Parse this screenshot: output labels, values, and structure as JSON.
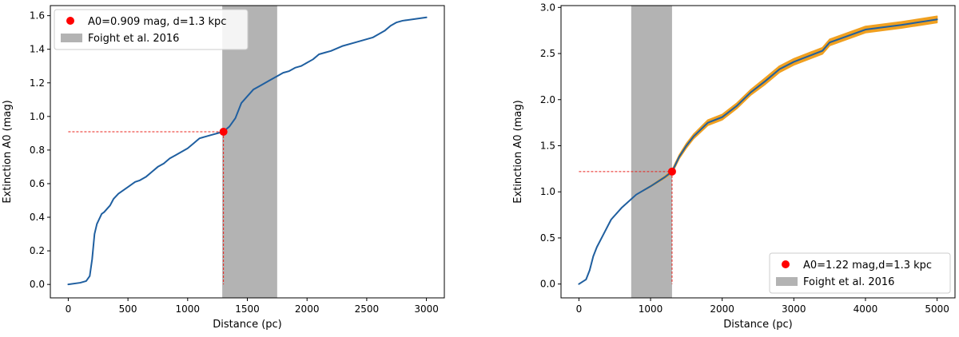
{
  "chart_data": [
    {
      "type": "line",
      "xlabel": "Distance (pc)",
      "ylabel": "Extinction A0 (mag)",
      "xlim": [
        -150,
        3150
      ],
      "ylim": [
        -0.08,
        1.66
      ],
      "xticks": [
        0,
        500,
        1000,
        1500,
        2000,
        2500,
        3000
      ],
      "xtick_labels": [
        "0",
        "500",
        "1000",
        "1500",
        "2000",
        "2500",
        "3000"
      ],
      "yticks": [
        0.0,
        0.2,
        0.4,
        0.6,
        0.8,
        1.0,
        1.2,
        1.4,
        1.6
      ],
      "ytick_labels": [
        "0.0",
        "0.2",
        "0.4",
        "0.6",
        "0.8",
        "1.0",
        "1.2",
        "1.4",
        "1.6"
      ],
      "legend_position": "top-left",
      "series": [
        {
          "color": "#1f5fa0",
          "x": [
            0,
            100,
            150,
            180,
            200,
            220,
            240,
            280,
            300,
            350,
            380,
            420,
            500,
            560,
            600,
            650,
            700,
            750,
            800,
            850,
            900,
            950,
            1000,
            1050,
            1100,
            1150,
            1200,
            1250,
            1300,
            1350,
            1400,
            1450,
            1500,
            1550,
            1600,
            1650,
            1700,
            1750,
            1800,
            1850,
            1900,
            1950,
            2000,
            2050,
            2100,
            2150,
            2200,
            2300,
            2400,
            2500,
            2550,
            2600,
            2650,
            2700,
            2750,
            2800,
            2900,
            3000
          ],
          "y": [
            0.0,
            0.01,
            0.02,
            0.05,
            0.15,
            0.3,
            0.36,
            0.42,
            0.43,
            0.47,
            0.51,
            0.54,
            0.58,
            0.61,
            0.62,
            0.64,
            0.67,
            0.7,
            0.72,
            0.75,
            0.77,
            0.79,
            0.81,
            0.84,
            0.87,
            0.88,
            0.89,
            0.9,
            0.91,
            0.94,
            0.99,
            1.08,
            1.12,
            1.16,
            1.18,
            1.2,
            1.22,
            1.24,
            1.26,
            1.27,
            1.29,
            1.3,
            1.32,
            1.34,
            1.37,
            1.38,
            1.39,
            1.42,
            1.44,
            1.46,
            1.47,
            1.49,
            1.51,
            1.54,
            1.56,
            1.57,
            1.58,
            1.59
          ]
        }
      ],
      "shaded_band": {
        "label": "Foight et al. 2016",
        "color": "#b3b3b3",
        "x_range": [
          1290,
          1750
        ]
      },
      "marker": {
        "label": "A0=0.909 mag, d=1.3 kpc",
        "color": "#ff0000",
        "x": 1300,
        "y": 0.909
      },
      "guide_color": "#e8231c"
    },
    {
      "type": "line",
      "xlabel": "Distance (pc)",
      "ylabel": "Extinction A0 (mag)",
      "xlim": [
        -250,
        5250
      ],
      "ylim": [
        -0.15,
        3.02
      ],
      "xticks": [
        0,
        1000,
        2000,
        3000,
        4000,
        5000
      ],
      "xtick_labels": [
        "0",
        "1000",
        "2000",
        "3000",
        "4000",
        "5000"
      ],
      "yticks": [
        0.0,
        0.5,
        1.0,
        1.5,
        2.0,
        2.5,
        3.0
      ],
      "ytick_labels": [
        "0.0",
        "0.5",
        "1.0",
        "1.5",
        "2.0",
        "2.5",
        "3.0"
      ],
      "legend_position": "bottom-right",
      "series": [
        {
          "color": "#1f5fa0",
          "band_color": "#f0a020",
          "band_halfwidth": [
            0.0,
            0.0,
            0.0,
            0.0,
            0.0,
            0.0,
            0.0,
            0.0,
            0.0,
            0.005,
            0.01,
            0.015,
            0.02,
            0.02,
            0.025,
            0.025,
            0.03,
            0.03,
            0.03,
            0.03,
            0.035,
            0.035,
            0.035,
            0.035,
            0.035,
            0.035,
            0.035,
            0.035,
            0.035
          ],
          "x": [
            0,
            100,
            150,
            200,
            250,
            350,
            450,
            600,
            800,
            1000,
            1200,
            1300,
            1350,
            1400,
            1500,
            1600,
            1800,
            2000,
            2200,
            2400,
            2600,
            2800,
            3000,
            3200,
            3400,
            3500,
            4000,
            4500,
            5000
          ],
          "y": [
            0.0,
            0.05,
            0.15,
            0.3,
            0.4,
            0.55,
            0.7,
            0.83,
            0.97,
            1.06,
            1.16,
            1.22,
            1.3,
            1.38,
            1.5,
            1.6,
            1.75,
            1.81,
            1.93,
            2.08,
            2.2,
            2.33,
            2.41,
            2.47,
            2.53,
            2.62,
            2.76,
            2.81,
            2.87
          ]
        }
      ],
      "shaded_band": {
        "label": "Foight et al. 2016",
        "color": "#b3b3b3",
        "x_range": [
          730,
          1300
        ]
      },
      "marker": {
        "label": "A0=1.22 mag,d=1.3 kpc",
        "color": "#ff0000",
        "x": 1300,
        "y": 1.22
      },
      "guide_color": "#e8231c"
    }
  ]
}
